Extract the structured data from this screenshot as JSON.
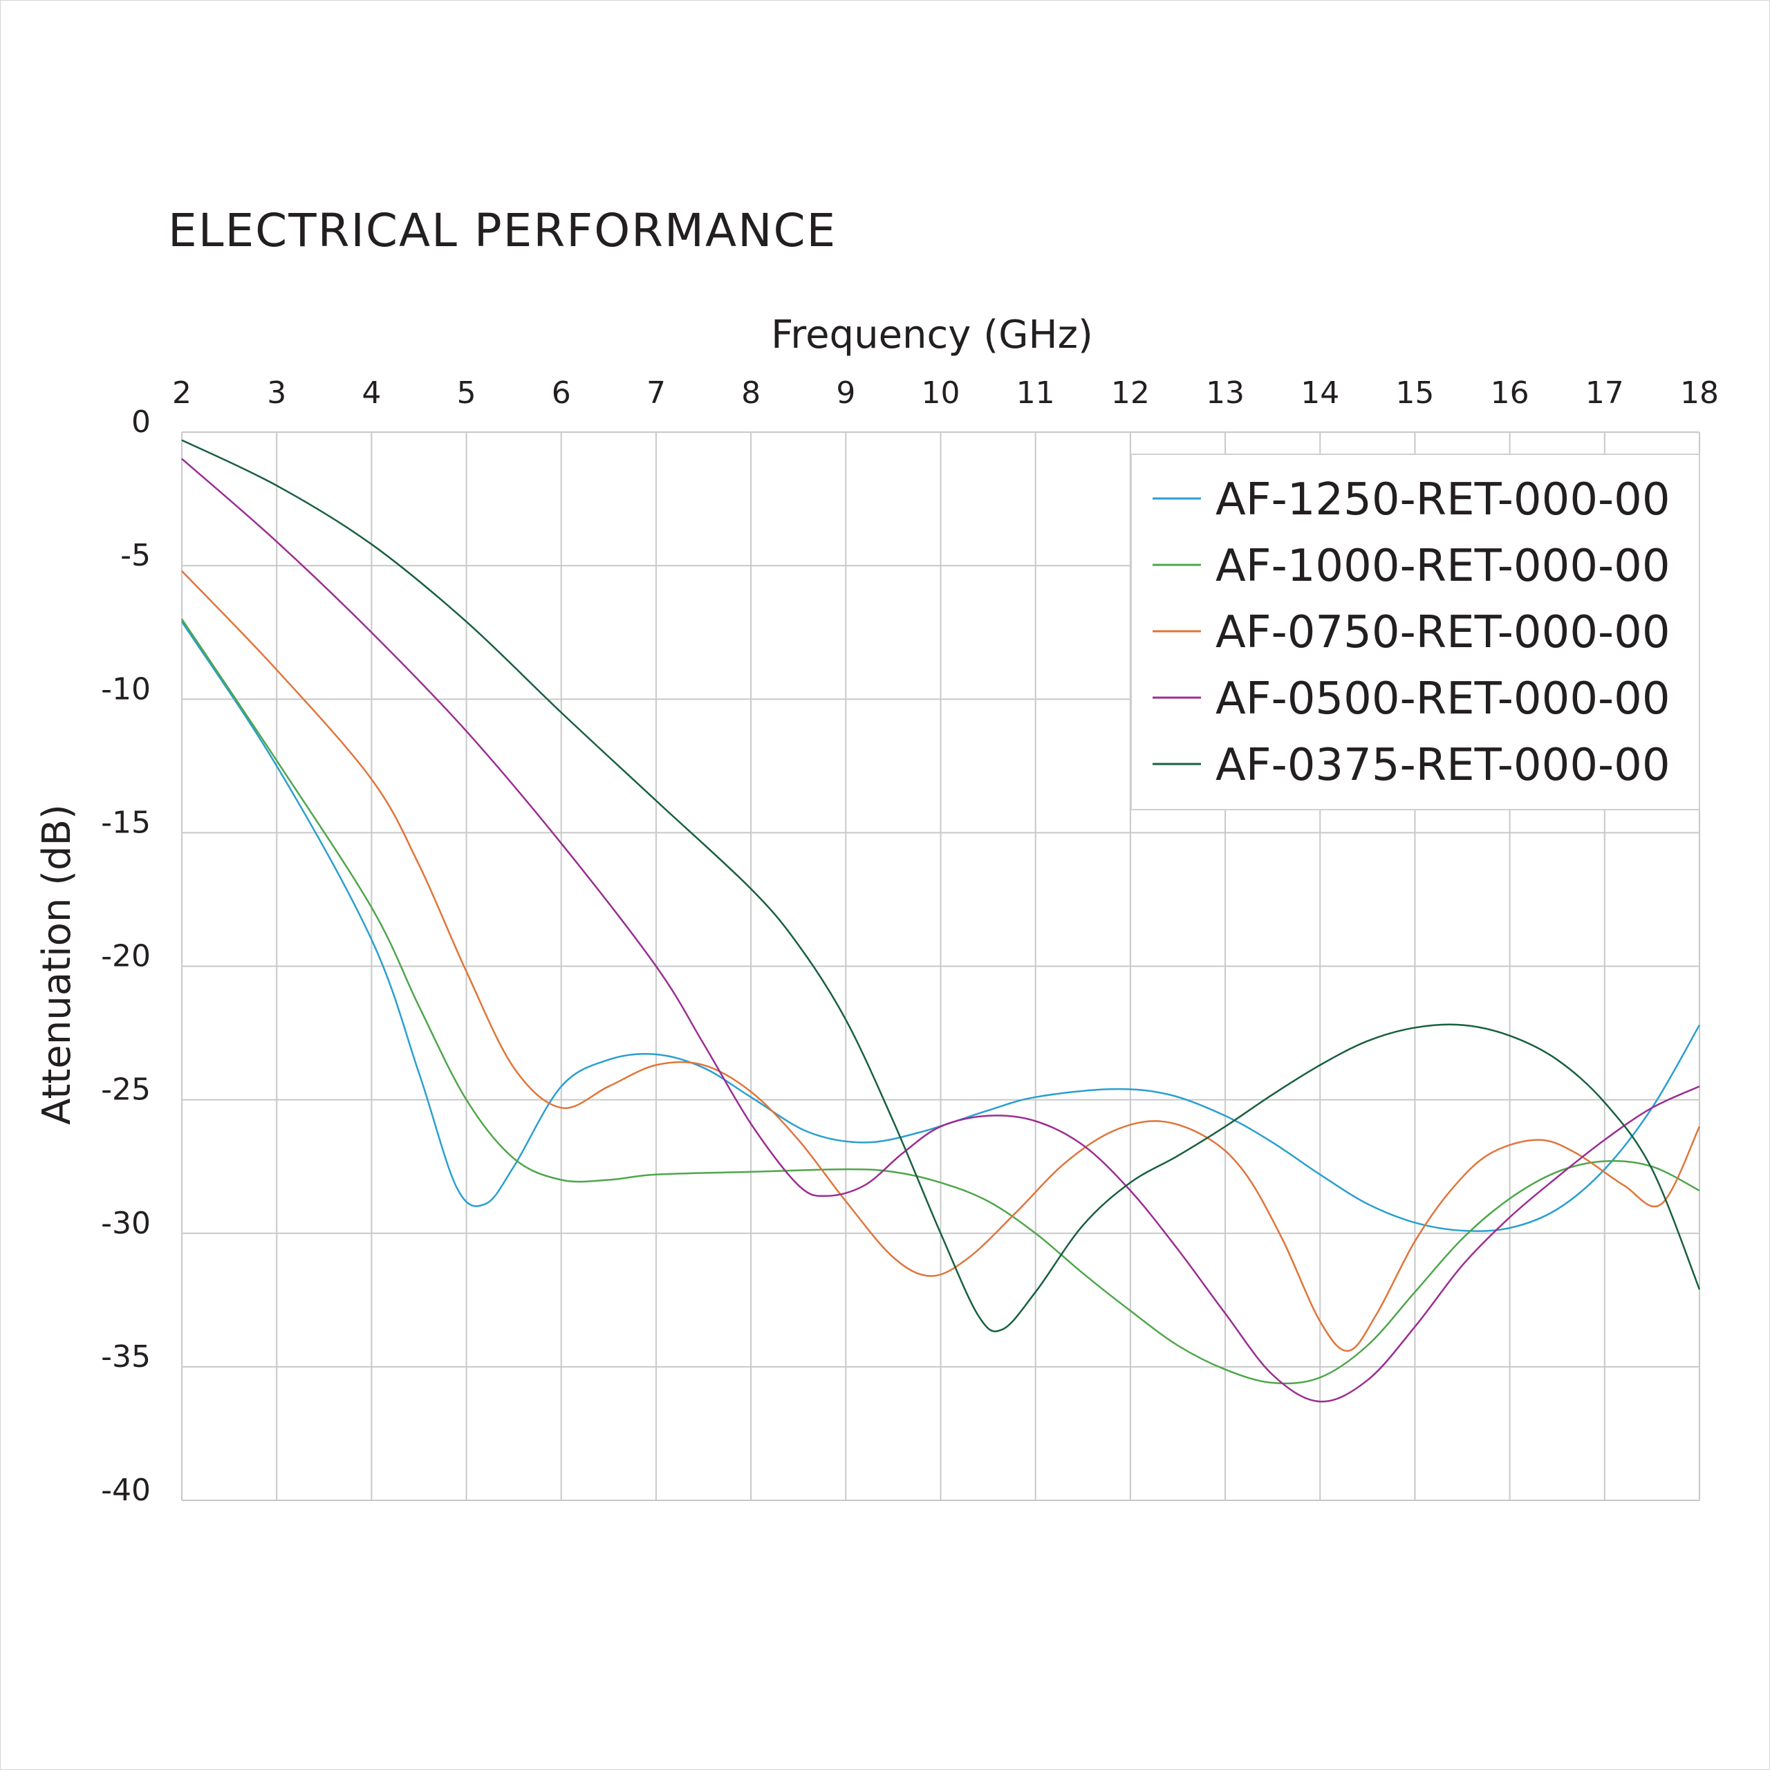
{
  "chart_data": {
    "type": "line",
    "title": "ELECTRICAL PERFORMANCE",
    "xlabel": "Frequency (GHz)",
    "ylabel": "Attenuation (dB)",
    "xlim": [
      2,
      18
    ],
    "ylim": [
      -40,
      0
    ],
    "xticks": [
      "2",
      "3",
      "4",
      "5",
      "6",
      "7",
      "8",
      "9",
      "10",
      "11",
      "12",
      "13",
      "14",
      "15",
      "16",
      "17",
      "18"
    ],
    "yticks": [
      "0",
      "-5",
      "-10",
      "-15",
      "-20",
      "-25",
      "-30",
      "-35",
      "-40"
    ],
    "grid": true,
    "legend_position": "top-right",
    "x_axis_position": "top",
    "series": [
      {
        "name": "AF-1250-RET-000-00",
        "color": "#2a9fd0",
        "points": [
          [
            2,
            -7.1
          ],
          [
            3,
            -12.5
          ],
          [
            4,
            -19
          ],
          [
            4.5,
            -24
          ],
          [
            4.9,
            -28.3
          ],
          [
            5.2,
            -28.9
          ],
          [
            5.5,
            -27.5
          ],
          [
            6,
            -24.5
          ],
          [
            6.5,
            -23.5
          ],
          [
            7,
            -23.3
          ],
          [
            7.5,
            -23.8
          ],
          [
            8,
            -24.9
          ],
          [
            8.6,
            -26.2
          ],
          [
            9.2,
            -26.6
          ],
          [
            9.8,
            -26.2
          ],
          [
            10.5,
            -25.4
          ],
          [
            11,
            -24.9
          ],
          [
            11.8,
            -24.6
          ],
          [
            12.4,
            -24.8
          ],
          [
            13,
            -25.6
          ],
          [
            13.5,
            -26.6
          ],
          [
            14,
            -27.8
          ],
          [
            14.5,
            -28.9
          ],
          [
            15,
            -29.6
          ],
          [
            15.5,
            -29.9
          ],
          [
            16,
            -29.8
          ],
          [
            16.5,
            -29.1
          ],
          [
            17,
            -27.6
          ],
          [
            17.5,
            -25.3
          ],
          [
            18,
            -22.2
          ]
        ]
      },
      {
        "name": "AF-1000-RET-000-00",
        "color": "#4ea64a",
        "points": [
          [
            2,
            -7
          ],
          [
            3,
            -12.3
          ],
          [
            4,
            -17.8
          ],
          [
            4.5,
            -21.5
          ],
          [
            5,
            -25
          ],
          [
            5.5,
            -27.2
          ],
          [
            6,
            -28
          ],
          [
            6.5,
            -28
          ],
          [
            7,
            -27.8
          ],
          [
            8,
            -27.7
          ],
          [
            9,
            -27.6
          ],
          [
            9.5,
            -27.7
          ],
          [
            10,
            -28.1
          ],
          [
            10.5,
            -28.8
          ],
          [
            11,
            -30
          ],
          [
            11.5,
            -31.5
          ],
          [
            12,
            -32.9
          ],
          [
            12.5,
            -34.2
          ],
          [
            13,
            -35.1
          ],
          [
            13.5,
            -35.6
          ],
          [
            14,
            -35.4
          ],
          [
            14.5,
            -34.2
          ],
          [
            15,
            -32.2
          ],
          [
            15.5,
            -30.2
          ],
          [
            16,
            -28.7
          ],
          [
            16.5,
            -27.7
          ],
          [
            17,
            -27.3
          ],
          [
            17.5,
            -27.5
          ],
          [
            18,
            -28.4
          ]
        ]
      },
      {
        "name": "AF-0750-RET-000-00",
        "color": "#e0753a",
        "points": [
          [
            2,
            -5.2
          ],
          [
            3,
            -8.9
          ],
          [
            4,
            -13
          ],
          [
            4.5,
            -16.2
          ],
          [
            5,
            -20.2
          ],
          [
            5.5,
            -23.8
          ],
          [
            6,
            -25.3
          ],
          [
            6.5,
            -24.5
          ],
          [
            7,
            -23.7
          ],
          [
            7.5,
            -23.7
          ],
          [
            8,
            -24.7
          ],
          [
            8.5,
            -26.5
          ],
          [
            9,
            -28.8
          ],
          [
            9.5,
            -30.9
          ],
          [
            9.9,
            -31.6
          ],
          [
            10.3,
            -30.9
          ],
          [
            10.8,
            -29.2
          ],
          [
            11.3,
            -27.4
          ],
          [
            11.8,
            -26.2
          ],
          [
            12.3,
            -25.8
          ],
          [
            12.8,
            -26.4
          ],
          [
            13.2,
            -27.7
          ],
          [
            13.6,
            -30.2
          ],
          [
            14,
            -33.3
          ],
          [
            14.3,
            -34.4
          ],
          [
            14.6,
            -33
          ],
          [
            15,
            -30.3
          ],
          [
            15.4,
            -28.3
          ],
          [
            15.8,
            -27
          ],
          [
            16.3,
            -26.5
          ],
          [
            16.7,
            -27
          ],
          [
            17.2,
            -28.2
          ],
          [
            17.6,
            -28.9
          ],
          [
            18,
            -26
          ]
        ]
      },
      {
        "name": "AF-0500-RET-000-00",
        "color": "#9b2d92",
        "points": [
          [
            2,
            -1
          ],
          [
            3,
            -4.1
          ],
          [
            4,
            -7.5
          ],
          [
            5,
            -11.2
          ],
          [
            6,
            -15.4
          ],
          [
            7,
            -20
          ],
          [
            7.5,
            -22.9
          ],
          [
            8,
            -25.9
          ],
          [
            8.5,
            -28.2
          ],
          [
            8.8,
            -28.6
          ],
          [
            9.2,
            -28.2
          ],
          [
            9.6,
            -27
          ],
          [
            10,
            -26
          ],
          [
            10.5,
            -25.6
          ],
          [
            11,
            -25.8
          ],
          [
            11.5,
            -26.7
          ],
          [
            12,
            -28.4
          ],
          [
            12.5,
            -30.6
          ],
          [
            13,
            -33
          ],
          [
            13.5,
            -35.3
          ],
          [
            14,
            -36.3
          ],
          [
            14.5,
            -35.5
          ],
          [
            15,
            -33.5
          ],
          [
            15.5,
            -31.2
          ],
          [
            16,
            -29.4
          ],
          [
            16.5,
            -27.9
          ],
          [
            17,
            -26.5
          ],
          [
            17.5,
            -25.3
          ],
          [
            18,
            -24.5
          ]
        ]
      },
      {
        "name": "AF-0375-RET-000-00",
        "color": "#17603e",
        "points": [
          [
            2,
            -0.3
          ],
          [
            3,
            -2
          ],
          [
            4,
            -4.2
          ],
          [
            5,
            -7.1
          ],
          [
            6,
            -10.5
          ],
          [
            7,
            -13.8
          ],
          [
            8,
            -17.1
          ],
          [
            8.5,
            -19.2
          ],
          [
            9,
            -22
          ],
          [
            9.5,
            -25.8
          ],
          [
            10,
            -30
          ],
          [
            10.4,
            -33.1
          ],
          [
            10.65,
            -33.6
          ],
          [
            11,
            -32.2
          ],
          [
            11.5,
            -29.7
          ],
          [
            12,
            -28.1
          ],
          [
            12.5,
            -27.1
          ],
          [
            13,
            -26
          ],
          [
            13.5,
            -24.8
          ],
          [
            14,
            -23.7
          ],
          [
            14.5,
            -22.8
          ],
          [
            15,
            -22.3
          ],
          [
            15.5,
            -22.2
          ],
          [
            16,
            -22.6
          ],
          [
            16.5,
            -23.5
          ],
          [
            17,
            -25.1
          ],
          [
            17.5,
            -27.6
          ],
          [
            18,
            -32.1
          ]
        ]
      }
    ]
  }
}
